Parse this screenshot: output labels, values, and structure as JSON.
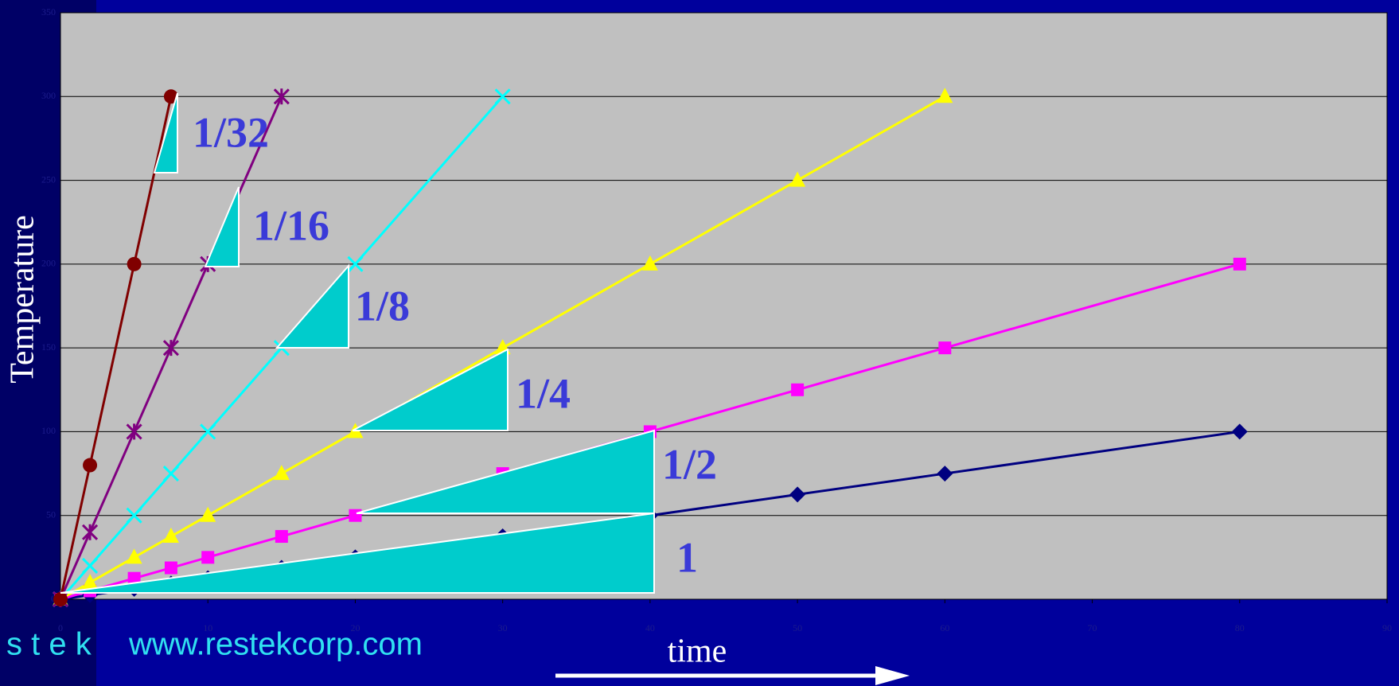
{
  "chart_data": {
    "type": "line",
    "x_label": "Temperature",
    "y_label_note": null,
    "x": [
      0,
      2,
      5,
      7.5,
      10,
      15,
      20,
      30,
      40,
      50,
      60,
      80
    ],
    "series": [
      {
        "color": "#000080",
        "marker": "diamond",
        "values": [
          0,
          2.5,
          6.25,
          9.375,
          12.5,
          18.75,
          25,
          37.5,
          50,
          62.5,
          75,
          100
        ]
      },
      {
        "color": "#ff00ff",
        "marker": "square",
        "values": [
          0,
          5,
          12.5,
          18.75,
          25,
          37.5,
          50,
          75,
          100,
          125,
          150,
          200
        ]
      },
      {
        "color": "#ffff00",
        "marker": "triangle",
        "values": [
          0,
          10,
          25,
          37.5,
          50,
          75,
          100,
          150,
          200,
          250,
          300,
          null
        ]
      },
      {
        "color": "#00ffff",
        "marker": "x",
        "values": [
          0,
          20,
          50,
          75,
          100,
          150,
          200,
          300,
          null,
          null,
          null,
          null
        ]
      },
      {
        "color": "#800080",
        "marker": "star",
        "values": [
          0,
          40,
          100,
          150,
          200,
          300,
          null,
          null,
          null,
          null,
          null,
          null
        ]
      },
      {
        "color": "#800000",
        "marker": "circle",
        "values": [
          0,
          80,
          200,
          300,
          null,
          null,
          null,
          null,
          null,
          null,
          null,
          null
        ]
      }
    ],
    "xlim": [
      0,
      90
    ],
    "xticks": [
      0,
      10,
      20,
      30,
      40,
      50,
      60,
      70,
      80,
      90
    ],
    "ylim": [
      0,
      350
    ],
    "yticks": [
      0,
      50,
      100,
      150,
      200,
      250,
      300,
      350
    ],
    "grid": true,
    "x_axis_label": "time",
    "y_axis_label": "Temperature",
    "annotations": [
      "1/32",
      "1/16",
      "1/8",
      "1/4",
      "1/2",
      "1"
    ],
    "footer": [
      "s t e k",
      "www.restekcorp.com"
    ]
  }
}
